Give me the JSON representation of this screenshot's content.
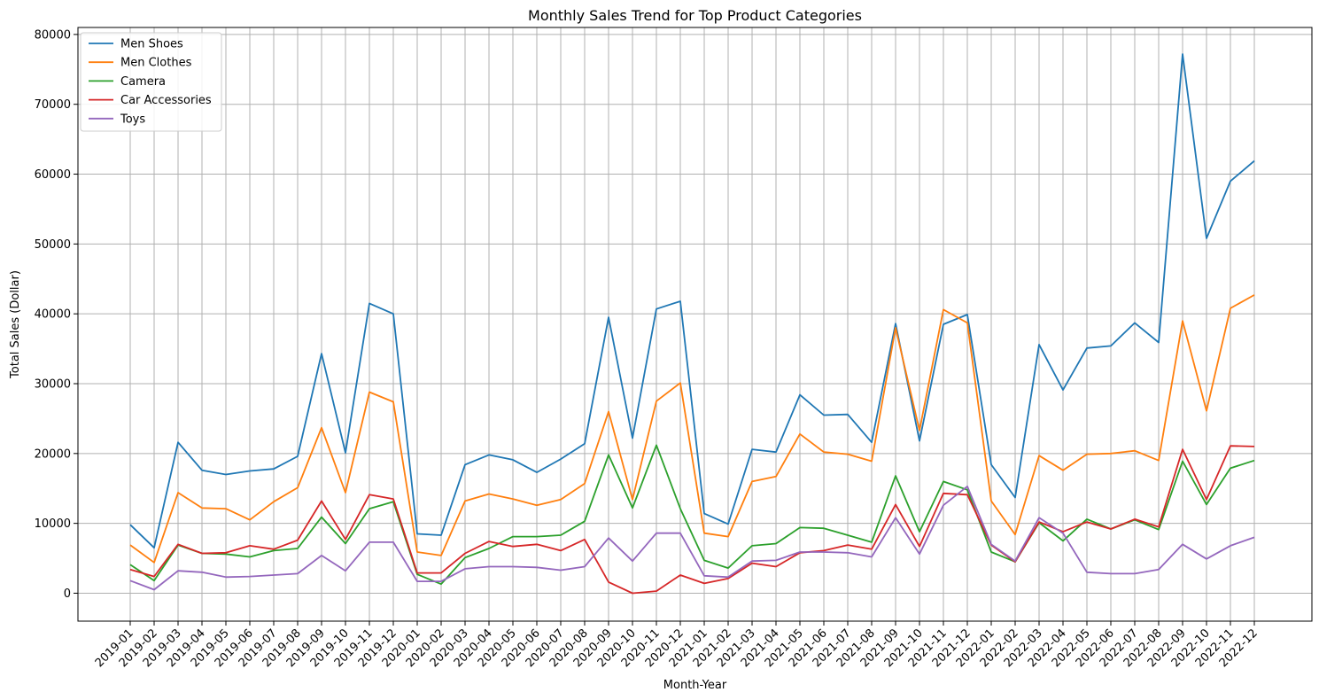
{
  "chart_data": {
    "type": "line",
    "title": "Monthly Sales Trend for Top Product Categories",
    "xlabel": "Month-Year",
    "ylabel": "Total Sales (Dollar)",
    "ylim": [
      -4000,
      81000
    ],
    "yticks": [
      0,
      10000,
      20000,
      30000,
      40000,
      50000,
      60000,
      70000,
      80000
    ],
    "grid": true,
    "legend_position": "top-left",
    "categories": [
      "2019-01",
      "2019-02",
      "2019-03",
      "2019-04",
      "2019-05",
      "2019-06",
      "2019-07",
      "2019-08",
      "2019-09",
      "2019-10",
      "2019-11",
      "2019-12",
      "2020-01",
      "2020-02",
      "2020-03",
      "2020-04",
      "2020-05",
      "2020-06",
      "2020-07",
      "2020-08",
      "2020-09",
      "2020-10",
      "2020-11",
      "2020-12",
      "2021-01",
      "2021-02",
      "2021-03",
      "2021-04",
      "2021-05",
      "2021-06",
      "2021-07",
      "2021-08",
      "2021-09",
      "2021-10",
      "2021-11",
      "2021-12",
      "2022-01",
      "2022-02",
      "2022-03",
      "2022-04",
      "2022-05",
      "2022-06",
      "2022-07",
      "2022-08",
      "2022-09",
      "2022-10",
      "2022-11",
      "2022-12"
    ],
    "series": [
      {
        "name": "Men Shoes",
        "color": "#1f77b4",
        "values": [
          9800,
          6500,
          21600,
          17600,
          17000,
          17500,
          17800,
          19600,
          34300,
          20100,
          41500,
          40000,
          8500,
          8300,
          18400,
          19800,
          19100,
          17300,
          19200,
          21400,
          39500,
          22200,
          40700,
          41800,
          11400,
          9900,
          20600,
          20200,
          28400,
          25500,
          25600,
          21600,
          38600,
          21800,
          38500,
          39900,
          18400,
          13700,
          35600,
          29100,
          35100,
          35400,
          38700,
          35900,
          77200,
          50800,
          59000,
          61900
        ]
      },
      {
        "name": "Men Clothes",
        "color": "#ff7f0e",
        "values": [
          6900,
          4400,
          14400,
          12200,
          12100,
          10500,
          13100,
          15100,
          23700,
          14400,
          28800,
          27400,
          5900,
          5400,
          13200,
          14200,
          13500,
          12600,
          13400,
          15700,
          26000,
          13400,
          27500,
          30100,
          8600,
          8100,
          16000,
          16700,
          22800,
          20200,
          19900,
          18900,
          38000,
          23300,
          40600,
          38700,
          13200,
          8400,
          19700,
          17600,
          19900,
          20000,
          20400,
          19000,
          39000,
          26100,
          40800,
          42700
        ]
      },
      {
        "name": "Camera",
        "color": "#2ca02c",
        "values": [
          4100,
          1800,
          6900,
          5700,
          5600,
          5200,
          6100,
          6400,
          10900,
          7100,
          12100,
          13100,
          2700,
          1300,
          5100,
          6400,
          8100,
          8100,
          8300,
          10300,
          19800,
          12200,
          21200,
          12100,
          4700,
          3600,
          6800,
          7100,
          9400,
          9300,
          8300,
          7300,
          16800,
          8800,
          16000,
          14800,
          5900,
          4500,
          10100,
          7500,
          10600,
          9200,
          10500,
          9100,
          18900,
          12700,
          17900,
          19000
        ]
      },
      {
        "name": "Car Accessories",
        "color": "#d62728",
        "values": [
          3400,
          2400,
          7000,
          5700,
          5800,
          6800,
          6300,
          7600,
          13200,
          7700,
          14100,
          13500,
          2900,
          2900,
          5700,
          7400,
          6700,
          7000,
          6100,
          7700,
          1600,
          0,
          300,
          2600,
          1400,
          2100,
          4300,
          3800,
          5800,
          6100,
          6900,
          6300,
          12700,
          6700,
          14300,
          14100,
          6900,
          4500,
          10200,
          8800,
          10200,
          9200,
          10600,
          9500,
          20600,
          13400,
          21100,
          21000
        ]
      },
      {
        "name": "Toys",
        "color": "#9467bd",
        "values": [
          1800,
          500,
          3200,
          3000,
          2300,
          2400,
          2600,
          2800,
          5400,
          3200,
          7300,
          7300,
          1700,
          1700,
          3500,
          3800,
          3800,
          3700,
          3300,
          3800,
          7900,
          4600,
          8600,
          8600,
          2500,
          2300,
          4600,
          4700,
          5900,
          5900,
          5800,
          5200,
          10800,
          5600,
          12600,
          15300,
          7000,
          4600,
          10800,
          8600,
          3000,
          2800,
          2800,
          3400,
          7000,
          4900,
          6800,
          8000
        ]
      }
    ]
  }
}
